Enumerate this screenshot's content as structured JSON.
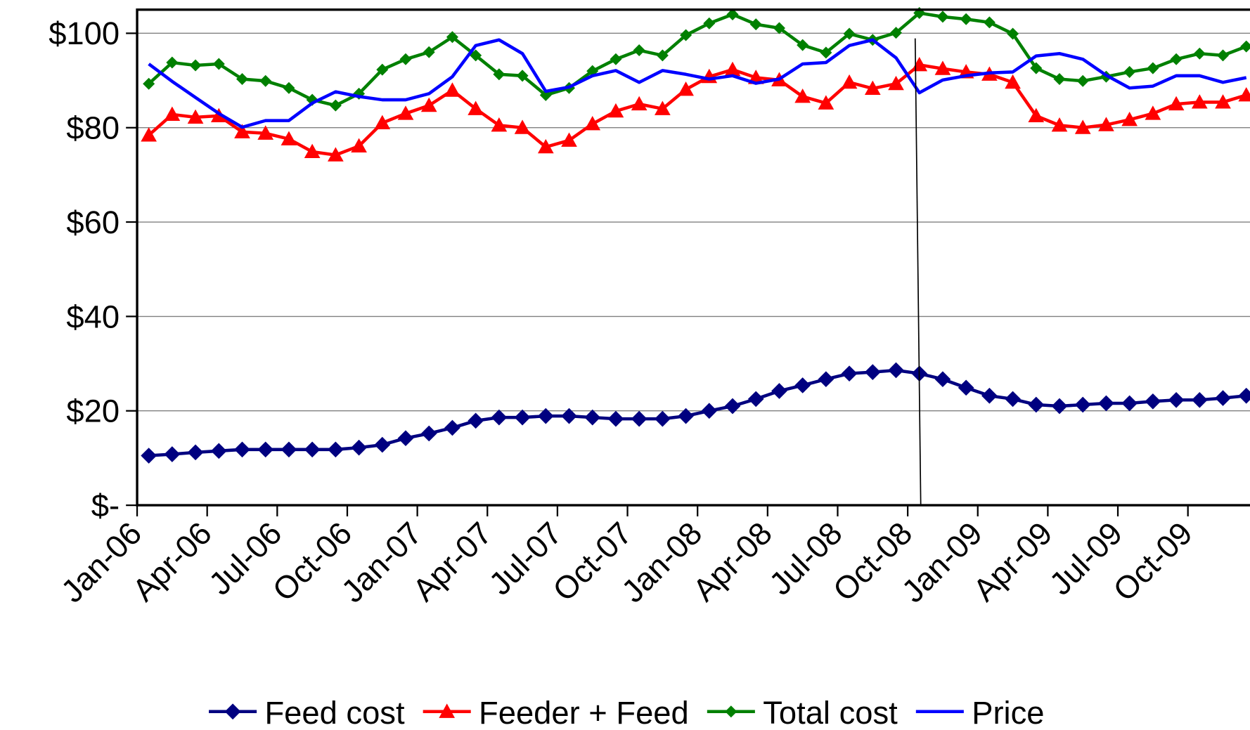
{
  "chart_data": {
    "type": "line",
    "categories": [
      "Jan-06",
      null,
      null,
      "Apr-06",
      null,
      null,
      "Jul-06",
      null,
      null,
      "Oct-06",
      null,
      null,
      "Jan-07",
      null,
      null,
      "Apr-07",
      null,
      null,
      "Jul-07",
      null,
      null,
      "Oct-07",
      null,
      null,
      "Jan-08",
      null,
      null,
      "Apr-08",
      null,
      null,
      "Jul-08",
      null,
      null,
      "Oct-08",
      null,
      null,
      "Jan-09",
      null,
      null,
      "Apr-09",
      null,
      null,
      "Jul-09",
      null,
      null,
      "Oct-09",
      null,
      null
    ],
    "series": [
      {
        "name": "Feed cost",
        "color": "#000080",
        "marker": "diamond",
        "values": [
          10.5,
          10.8,
          11.2,
          11.5,
          11.8,
          11.8,
          11.8,
          11.8,
          11.8,
          12.2,
          12.8,
          14.2,
          15.2,
          16.4,
          17.9,
          18.6,
          18.6,
          18.9,
          18.9,
          18.6,
          18.3,
          18.3,
          18.3,
          18.9,
          20,
          21,
          22.5,
          24.2,
          25.4,
          26.7,
          27.9,
          28.2,
          28.6,
          27.9,
          26.7,
          24.9,
          23.2,
          22.5,
          21.3,
          21,
          21.3,
          21.6,
          21.6,
          22,
          22.3,
          22.3,
          22.7,
          23.2
        ]
      },
      {
        "name": "Feeder + Feed",
        "color": "#ff0000",
        "marker": "triangle",
        "values": [
          78.4,
          82.8,
          82.2,
          82.5,
          79.1,
          78.8,
          77.6,
          74.9,
          74.2,
          76.1,
          81,
          83,
          84.7,
          87.9,
          84,
          80.5,
          80,
          75.9,
          77.3,
          80.8,
          83.5,
          85,
          84,
          88.1,
          90.8,
          92.3,
          90.6,
          90.1,
          86.6,
          85.2,
          89.6,
          88.3,
          89.3,
          93.3,
          92.5,
          91.8,
          91.3,
          89.6,
          82.5,
          80.5,
          80,
          80.6,
          81.7,
          83,
          85,
          85.4,
          85.4,
          86.9
        ]
      },
      {
        "name": "Total cost",
        "color": "#008000",
        "marker": "small-diamond",
        "values": [
          89.3,
          93.8,
          93.2,
          93.5,
          90.3,
          89.9,
          88.4,
          85.9,
          84.7,
          87.2,
          92.3,
          94.5,
          96,
          99.2,
          95.3,
          91.3,
          91,
          86.9,
          88.4,
          92,
          94.5,
          96.4,
          95.3,
          99.6,
          102.1,
          104,
          101.9,
          101.1,
          97.5,
          95.9,
          99.9,
          98.6,
          100.1,
          104.3,
          103.5,
          103,
          102.3,
          99.9,
          92.6,
          90.3,
          89.9,
          90.8,
          91.8,
          92.6,
          94.5,
          95.7,
          95.3,
          97.2
        ]
      },
      {
        "name": "Price",
        "color": "#0000ff",
        "marker": null,
        "values": [
          93.5,
          89.8,
          86.4,
          83,
          80.1,
          81.5,
          81.5,
          85.2,
          87.6,
          86.6,
          85.9,
          85.9,
          87.2,
          90.8,
          97.4,
          98.6,
          95.7,
          87.7,
          88.6,
          91,
          92.1,
          89.6,
          92.1,
          91.3,
          90.3,
          91,
          89.4,
          90.3,
          93.5,
          93.8,
          97.4,
          98.6,
          94.8,
          87.4,
          90.1,
          91,
          91.6,
          91.8,
          95.2,
          95.7,
          94.5,
          91.1,
          88.4,
          88.8,
          91,
          91,
          89.6,
          90.6
        ]
      }
    ],
    "ylim": [
      0,
      105
    ],
    "yticks": [
      {
        "value": 0,
        "label": "$-"
      },
      {
        "value": 20,
        "label": "$20"
      },
      {
        "value": 40,
        "label": "$40"
      },
      {
        "value": 60,
        "label": "$60"
      },
      {
        "value": 80,
        "label": "$80"
      },
      {
        "value": 100,
        "label": "$100"
      }
    ],
    "grid": true,
    "legend": "bottom"
  }
}
